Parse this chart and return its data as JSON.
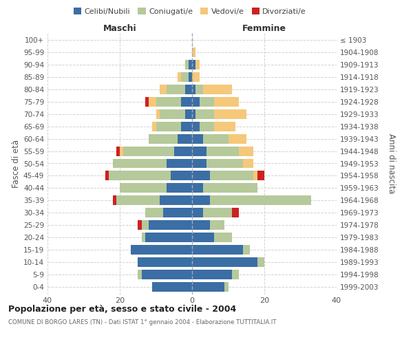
{
  "age_groups": [
    "0-4",
    "5-9",
    "10-14",
    "15-19",
    "20-24",
    "25-29",
    "30-34",
    "35-39",
    "40-44",
    "45-49",
    "50-54",
    "55-59",
    "60-64",
    "65-69",
    "70-74",
    "75-79",
    "80-84",
    "85-89",
    "90-94",
    "95-99",
    "100+"
  ],
  "birth_years": [
    "1999-2003",
    "1994-1998",
    "1989-1993",
    "1984-1988",
    "1979-1983",
    "1974-1978",
    "1969-1973",
    "1964-1968",
    "1959-1963",
    "1954-1958",
    "1949-1953",
    "1944-1948",
    "1939-1943",
    "1934-1938",
    "1929-1933",
    "1924-1928",
    "1919-1923",
    "1914-1918",
    "1909-1913",
    "1904-1908",
    "≤ 1903"
  ],
  "maschi_celibi": [
    11,
    14,
    15,
    17,
    13,
    12,
    8,
    9,
    7,
    6,
    7,
    5,
    4,
    3,
    2,
    3,
    2,
    1,
    1,
    0,
    0
  ],
  "maschi_coniugati": [
    0,
    1,
    0,
    0,
    1,
    2,
    5,
    12,
    13,
    17,
    15,
    14,
    8,
    7,
    7,
    7,
    5,
    2,
    1,
    0,
    0
  ],
  "maschi_vedovi": [
    0,
    0,
    0,
    0,
    0,
    0,
    0,
    0,
    0,
    0,
    0,
    1,
    0,
    1,
    1,
    2,
    2,
    1,
    0,
    0,
    0
  ],
  "maschi_divorziati": [
    0,
    0,
    0,
    0,
    0,
    1,
    0,
    1,
    0,
    1,
    0,
    1,
    0,
    0,
    0,
    1,
    0,
    0,
    0,
    0,
    0
  ],
  "femmine_nubili": [
    9,
    11,
    18,
    14,
    6,
    5,
    3,
    5,
    3,
    5,
    4,
    4,
    3,
    2,
    1,
    2,
    1,
    0,
    1,
    0,
    0
  ],
  "femmine_coniugate": [
    1,
    2,
    2,
    2,
    5,
    4,
    8,
    28,
    15,
    12,
    10,
    9,
    7,
    4,
    5,
    4,
    2,
    0,
    0,
    0,
    0
  ],
  "femmine_vedove": [
    0,
    0,
    0,
    0,
    0,
    0,
    0,
    0,
    0,
    1,
    3,
    4,
    5,
    6,
    9,
    7,
    8,
    2,
    1,
    1,
    0
  ],
  "femmine_divorziate": [
    0,
    0,
    0,
    0,
    0,
    0,
    2,
    0,
    0,
    2,
    0,
    0,
    0,
    0,
    0,
    0,
    0,
    0,
    0,
    0,
    0
  ],
  "colors_celibi": "#3b6ea5",
  "colors_coniugati": "#b5c99a",
  "colors_vedovi": "#f5c87a",
  "colors_divorziati": "#cc2222",
  "xlim": 40,
  "title": "Popolazione per età, sesso e stato civile - 2004",
  "subtitle": "COMUNE DI BORGO LARES (TN) - Dati ISTAT 1° gennaio 2004 - Elaborazione TUTTITALIA.IT",
  "ylabel_left": "Fasce di età",
  "ylabel_right": "Anni di nascita",
  "label_maschi": "Maschi",
  "label_femmine": "Femmine",
  "legend_labels": [
    "Celibi/Nubili",
    "Coniugati/e",
    "Vedovi/e",
    "Divorziati/e"
  ],
  "bg_color": "#ffffff",
  "grid_color": "#cccccc"
}
